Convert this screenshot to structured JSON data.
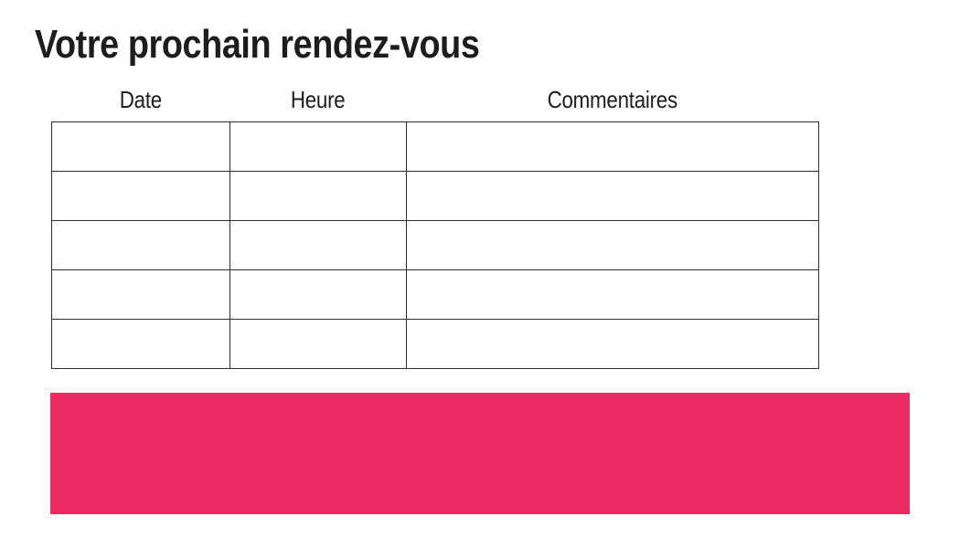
{
  "page": {
    "title": "Votre prochain rendez-vous"
  },
  "table": {
    "columns": [
      {
        "label": "Date"
      },
      {
        "label": "Heure"
      },
      {
        "label": "Commentaires"
      }
    ],
    "rows": [
      [
        "",
        "",
        ""
      ],
      [
        "",
        "",
        ""
      ],
      [
        "",
        "",
        ""
      ],
      [
        "",
        "",
        ""
      ],
      [
        "",
        "",
        ""
      ]
    ]
  },
  "colors": {
    "accent_pink": "#ED2B63",
    "border": "#2E2E2E",
    "text": "#1D1D1B"
  }
}
